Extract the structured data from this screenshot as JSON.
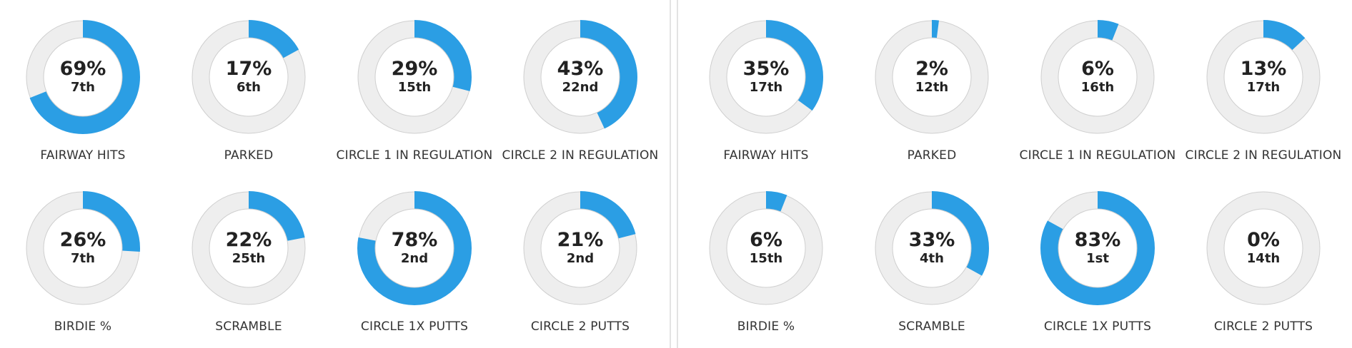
{
  "colors": {
    "accent": "#2b9ee4",
    "track": "#eeeeee",
    "track_border": "#cfcfcf"
  },
  "panels": [
    {
      "stats": [
        {
          "label": "FAIRWAY HITS",
          "percent_value": 69,
          "percent": "69%",
          "rank": "7th"
        },
        {
          "label": "PARKED",
          "percent_value": 17,
          "percent": "17%",
          "rank": "6th"
        },
        {
          "label": "CIRCLE 1 IN REGULATION",
          "percent_value": 29,
          "percent": "29%",
          "rank": "15th"
        },
        {
          "label": "CIRCLE 2 IN REGULATION",
          "percent_value": 43,
          "percent": "43%",
          "rank": "22nd"
        },
        {
          "label": "BIRDIE %",
          "percent_value": 26,
          "percent": "26%",
          "rank": "7th"
        },
        {
          "label": "SCRAMBLE",
          "percent_value": 22,
          "percent": "22%",
          "rank": "25th"
        },
        {
          "label": "CIRCLE 1X PUTTS",
          "percent_value": 78,
          "percent": "78%",
          "rank": "2nd"
        },
        {
          "label": "CIRCLE 2 PUTTS",
          "percent_value": 21,
          "percent": "21%",
          "rank": "2nd"
        }
      ]
    },
    {
      "stats": [
        {
          "label": "FAIRWAY HITS",
          "percent_value": 35,
          "percent": "35%",
          "rank": "17th"
        },
        {
          "label": "PARKED",
          "percent_value": 2,
          "percent": "2%",
          "rank": "12th"
        },
        {
          "label": "CIRCLE 1 IN REGULATION",
          "percent_value": 6,
          "percent": "6%",
          "rank": "16th"
        },
        {
          "label": "CIRCLE 2 IN REGULATION",
          "percent_value": 13,
          "percent": "13%",
          "rank": "17th"
        },
        {
          "label": "BIRDIE %",
          "percent_value": 6,
          "percent": "6%",
          "rank": "15th"
        },
        {
          "label": "SCRAMBLE",
          "percent_value": 33,
          "percent": "33%",
          "rank": "4th"
        },
        {
          "label": "CIRCLE 1X PUTTS",
          "percent_value": 83,
          "percent": "83%",
          "rank": "1st"
        },
        {
          "label": "CIRCLE 2 PUTTS",
          "percent_value": 0,
          "percent": "0%",
          "rank": "14th"
        }
      ]
    }
  ]
}
